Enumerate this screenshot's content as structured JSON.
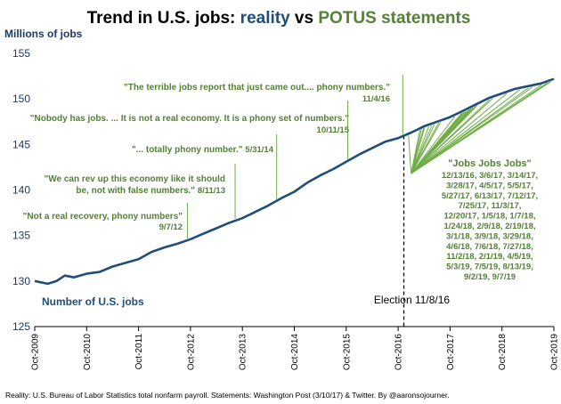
{
  "chart_data": {
    "type": "line",
    "title_parts": [
      {
        "text": "Trend in U.S. jobs: ",
        "color": "#000000"
      },
      {
        "text": "reality",
        "color": "#1f4e79"
      },
      {
        "text": " vs ",
        "color": "#000000"
      },
      {
        "text": "POTUS statements",
        "color": "#548235"
      }
    ],
    "ylabel": "Millions of jobs",
    "series_label": "Number of U.S. jobs",
    "ylim": [
      125,
      155
    ],
    "yticks": [
      "125",
      "130",
      "135",
      "140",
      "145",
      "150",
      "155"
    ],
    "xticks": [
      "Oct-2009",
      "Oct-2010",
      "Oct-2011",
      "Oct-2012",
      "Oct-2013",
      "Oct-2014",
      "Oct-2015",
      "Oct-2016",
      "Oct-2017",
      "Oct-2018",
      "Oct-2019"
    ],
    "x_start": 2009.75,
    "x_end": 2019.75,
    "series": [
      {
        "name": "Number of U.S. jobs",
        "color": "#1f4e79",
        "x": [
          2009.75,
          2009.92,
          2010.0,
          2010.17,
          2010.33,
          2010.42,
          2010.5,
          2010.75,
          2011.0,
          2011.25,
          2011.5,
          2011.75,
          2012.0,
          2012.25,
          2012.5,
          2012.75,
          2013.0,
          2013.25,
          2013.5,
          2013.75,
          2014.0,
          2014.25,
          2014.5,
          2014.75,
          2015.0,
          2015.25,
          2015.5,
          2015.75,
          2016.0,
          2016.25,
          2016.5,
          2016.75,
          2017.0,
          2017.25,
          2017.5,
          2017.75,
          2018.0,
          2018.25,
          2018.5,
          2018.75,
          2019.0,
          2019.25,
          2019.5,
          2019.75
        ],
        "values": [
          130.0,
          129.8,
          129.7,
          130.0,
          130.6,
          130.5,
          130.4,
          130.8,
          131.0,
          131.6,
          132.0,
          132.4,
          133.2,
          133.7,
          134.1,
          134.6,
          135.2,
          135.8,
          136.4,
          136.9,
          137.6,
          138.3,
          139.1,
          139.8,
          140.8,
          141.6,
          142.3,
          143.1,
          143.9,
          144.6,
          145.3,
          145.7,
          146.3,
          147.0,
          147.5,
          148.0,
          148.7,
          149.4,
          150.1,
          150.6,
          151.1,
          151.4,
          151.7,
          152.2
        ]
      }
    ],
    "election": {
      "label": "Election 11/8/16",
      "x": 2016.86
    },
    "statements": [
      {
        "quote": "\"Not a real recovery, phony numbers\"",
        "date": "9/7/12",
        "x": 2012.69
      },
      {
        "quote": "\"We can rev up this economy like it should",
        "quote2": "be, not with false numbers.\"",
        "date": "8/11/13",
        "x": 2013.61
      },
      {
        "quote": "\"... totally phony number.\"",
        "date": "5/31/14",
        "x": 2014.41
      },
      {
        "quote": "\"Nobody has jobs. ... It is not a real economy. It is a phony set of numbers.\"",
        "date": "10/11/15",
        "x": 2015.78
      },
      {
        "quote": "\"The terrible jobs report that just came out.... phony numbers.\"",
        "date": "11/4/16",
        "x": 2016.84
      }
    ],
    "jobs_jobs_jobs": {
      "title": "\"Jobs Jobs Jobs\"",
      "dates": [
        "12/13/16, 3/6/17, 3/14/17,",
        "3/28/17, 4/5/17, 5/5/17,",
        "5/27/17, 6/13/17, 7/12/17,",
        "7/25/17, 11/3/17,",
        "12/20/17, 1/5/18, 1/7/18,",
        "1/24/18, 2/9/18, 2/19/18,",
        "3/1/18, 3/9/18, 3/29/18,",
        "4/6/18, 7/6/18, 7/27/18,",
        "11/2/18, 2/1/19, 4/5/19,",
        "5/3/19, 7/5/19, 8/13/19,",
        "9/2/19, 9/7/19"
      ],
      "fan_x": [
        2016.95,
        2017.17,
        2017.2,
        2017.24,
        2017.26,
        2017.34,
        2017.4,
        2017.45,
        2017.53,
        2017.57,
        2017.84,
        2017.97,
        2018.01,
        2018.02,
        2018.06,
        2018.11,
        2018.13,
        2018.16,
        2018.19,
        2018.24,
        2018.27,
        2018.51,
        2018.57,
        2018.84,
        2019.09,
        2019.26,
        2019.34,
        2019.51,
        2019.62,
        2019.67,
        2019.69
      ]
    },
    "footer": "Reality: U.S. Bureau of Labor Statistics total nonfarm payroll. Statements: Washington Post (3/10/17) & Twitter. By @aaronsojourner."
  }
}
